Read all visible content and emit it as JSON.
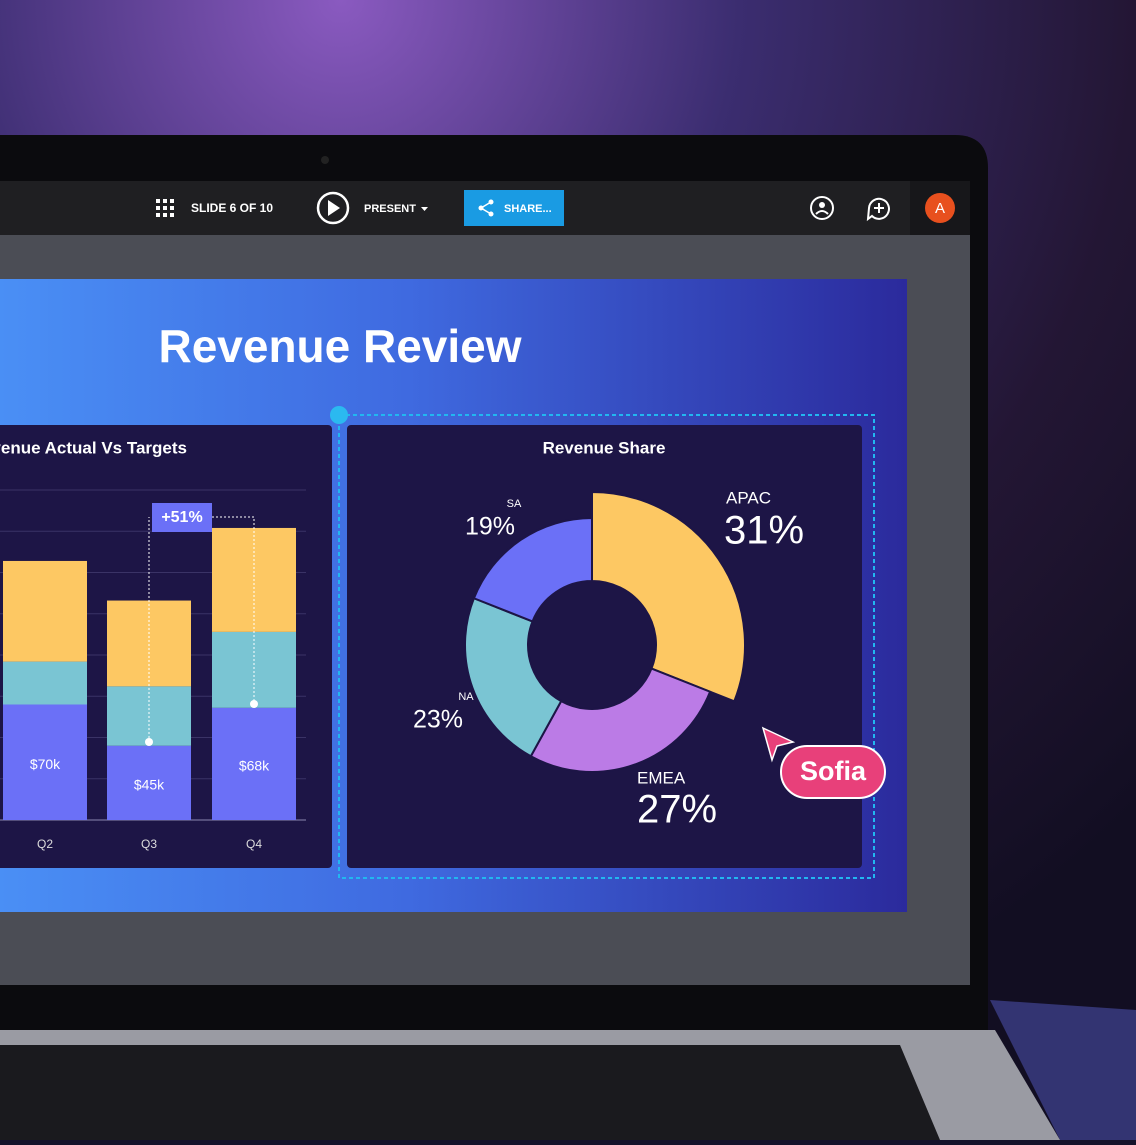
{
  "toolbar": {
    "slide_counter": "SLIDE 6 OF 10",
    "present": "PRESENT",
    "share": "SHARE...",
    "avatar": "A"
  },
  "slide_title": "Revenue Review",
  "cursor_label": "Sofia",
  "chart_data": [
    {
      "type": "bar",
      "stacked": true,
      "title": "Revenue Actual Vs Targets",
      "categories": [
        "Q2",
        "Q3",
        "Q4"
      ],
      "series": [
        {
          "color": "#6b70f7",
          "values": [
            70,
            45,
            68
          ],
          "value_labels": [
            "$70k",
            "$45k",
            "$68k"
          ]
        },
        {
          "color": "#7ac5d3",
          "values": [
            26,
            36,
            46
          ]
        },
        {
          "color": "#fdc863",
          "values": [
            61,
            52,
            63
          ]
        }
      ],
      "ylim": [
        0,
        200
      ],
      "yticks": [
        0,
        25,
        50,
        75,
        100,
        125,
        150,
        175,
        200
      ],
      "grid": true,
      "annotations": [
        {
          "text": "+51%"
        }
      ]
    },
    {
      "type": "donut",
      "title": "Revenue Share",
      "categories": [
        "APAC",
        "EMEA",
        "NA",
        "SA"
      ],
      "values": [
        31,
        27,
        23,
        19
      ],
      "value_labels": [
        "31%",
        "27%",
        "23%",
        "19%"
      ],
      "colors": [
        "#fdc863",
        "#bb7be6",
        "#7ac5d3",
        "#6b70f7"
      ],
      "highlight": "APAC"
    }
  ]
}
